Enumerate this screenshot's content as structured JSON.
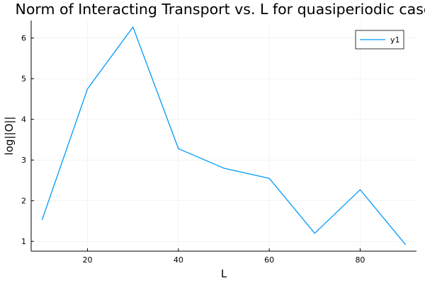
{
  "chart_data": {
    "type": "line",
    "title": "Norm of Interacting Transport vs. L for quasiperiodic case",
    "xlabel": "L",
    "ylabel": "log||O||",
    "xlim": [
      7.6,
      92.4
    ],
    "ylim": [
      0.76,
      6.43
    ],
    "xticks": [
      20,
      40,
      60,
      80
    ],
    "yticks": [
      1,
      2,
      3,
      4,
      5,
      6
    ],
    "grid": true,
    "legend_position": "top-right",
    "series": [
      {
        "name": "y1",
        "color": "#009AFA",
        "x": [
          10,
          20,
          30,
          40,
          50,
          60,
          70,
          80,
          90
        ],
        "y": [
          1.53,
          4.75,
          6.27,
          3.28,
          2.8,
          2.55,
          1.2,
          2.27,
          0.92
        ]
      }
    ]
  }
}
